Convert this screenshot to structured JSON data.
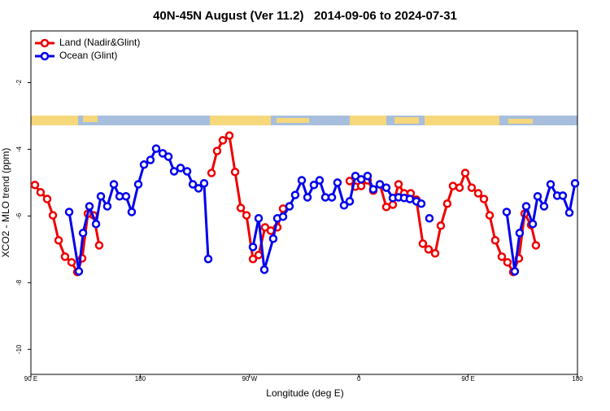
{
  "chart_data": {
    "type": "line",
    "title": "40N-45N August (Ver 11.2)   2014-09-06 to 2024-07-31",
    "xlabel": "Longitude (deg E)",
    "ylabel": "XCO2 - MLO trend (ppm)",
    "xlim": [
      90,
      540
    ],
    "ylim": [
      -10.75,
      -0.45
    ],
    "xticks": [
      {
        "value": 90,
        "label": "90 E"
      },
      180,
      {
        "value": 270,
        "label": "90 W"
      },
      {
        "value": 360,
        "label": "0"
      },
      {
        "value": 450,
        "label": "90 E"
      },
      {
        "value": 540,
        "label": "180"
      }
    ],
    "yticks": [
      -2,
      -4,
      -6,
      -8,
      -10
    ],
    "legend": "top-left",
    "series": [
      {
        "name": "Land (Nadir&Glint)",
        "color": "#ee0000",
        "x": [
          93.3,
          98.0,
          103.4,
          108.1,
          112.8,
          118.1,
          123.5,
          128.2,
          132.2,
          136.9,
          141.6,
          146.2,
          null,
          238.7,
          243.3,
          248.0,
          253.4,
          258.1,
          262.8,
          267.5,
          272.8,
          277.5,
          282.8,
          287.5,
          292.9,
          297.6,
          null,
          352.5,
          357.2,
          361.9,
          367.2,
          371.9,
          377.3,
          382.6,
          388.0,
          392.7,
          397.3,
          402.7,
          407.4,
          412.7,
          417.4,
          422.8,
          427.5,
          432.8,
          437.5,
          442.9,
          447.6,
          452.9,
          458.3,
          463.0,
          467.7,
          472.3,
          477.7,
          482.4,
          487.1,
          491.8,
          496.5,
          501.8,
          505.8
        ],
        "values": [
          -5.07,
          -5.29,
          -5.49,
          -5.98,
          -6.73,
          -7.22,
          -7.39,
          -7.68,
          -7.27,
          -5.93,
          -5.98,
          -6.88,
          null,
          -4.71,
          -4.05,
          -3.73,
          -3.59,
          -4.68,
          -5.76,
          -5.98,
          -7.29,
          -7.17,
          -6.34,
          -6.44,
          -6.34,
          -5.78,
          null,
          -4.95,
          -5.12,
          -5.1,
          -4.93,
          -5.24,
          -5.05,
          -5.73,
          -5.66,
          -5.05,
          -5.32,
          -5.32,
          -5.51,
          -6.83,
          -7.0,
          -7.12,
          -6.29,
          -5.63,
          -5.1,
          -5.15,
          -4.71,
          -5.15,
          -5.32,
          -5.49,
          -5.98,
          -6.73,
          -7.22,
          -7.39,
          -7.68,
          -7.27,
          -5.93,
          -6.27,
          -6.88
        ]
      },
      {
        "name": "Ocean (Glint)",
        "color": "#0000ee",
        "x": [
          121.5,
          129.5,
          132.9,
          138.2,
          143.6,
          147.6,
          152.9,
          158.3,
          163.0,
          168.3,
          173.0,
          178.4,
          183.1,
          188.4,
          193.1,
          198.5,
          203.2,
          207.9,
          213.2,
          218.6,
          223.3,
          228.0,
          232.6,
          236.0,
          null,
          272.8,
          277.5,
          282.2,
          289.5,
          292.9,
          297.6,
          302.9,
          307.6,
          313.0,
          317.7,
          323.0,
          327.7,
          332.4,
          337.8,
          342.4,
          347.8,
          352.5,
          357.2,
          361.9,
          367.2,
          371.9,
          377.3,
          382.6,
          388.0,
          392.7,
          397.3,
          402.0,
          407.4,
          411.4,
          null,
          418.1,
          null,
          481.7,
          488.4,
          492.4,
          497.8,
          503.2,
          507.2,
          512.5,
          517.9,
          523.3,
          527.9,
          533.3,
          538.0
        ],
        "values": [
          -5.88,
          -7.66,
          -6.51,
          -5.71,
          -6.24,
          -5.41,
          -5.71,
          -5.05,
          -5.41,
          -5.41,
          -5.88,
          -5.05,
          -4.46,
          -4.32,
          -3.98,
          -4.12,
          -4.22,
          -4.66,
          -4.56,
          -4.66,
          -5.05,
          -5.17,
          -5.02,
          -7.29,
          null,
          -6.93,
          -6.07,
          -7.61,
          -6.68,
          -6.07,
          -6.02,
          -5.71,
          -5.37,
          -4.93,
          -5.44,
          -5.07,
          -4.93,
          -5.44,
          -5.44,
          -5.0,
          -5.68,
          -5.56,
          -4.8,
          -4.9,
          -4.8,
          -5.2,
          -5.05,
          -5.15,
          -5.46,
          -5.44,
          -5.46,
          -5.49,
          -5.56,
          -5.63,
          null,
          -6.07,
          null,
          -5.88,
          -7.66,
          -6.51,
          -5.71,
          -6.24,
          -5.41,
          -5.71,
          -5.05,
          -5.39,
          -5.39,
          -5.9,
          -5.02
        ]
      }
    ]
  }
}
